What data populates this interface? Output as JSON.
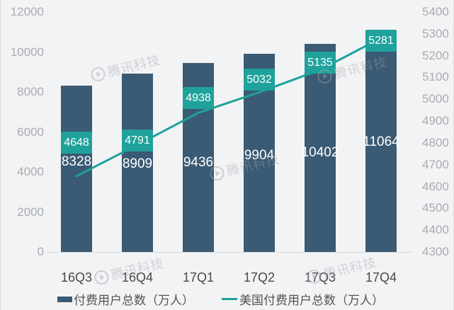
{
  "chart_data": {
    "type": "bar+line",
    "title": "",
    "categories": [
      "16Q3",
      "16Q4",
      "17Q1",
      "17Q2",
      "17Q3",
      "17Q4"
    ],
    "series": [
      {
        "name": "付费用户总数（万人）",
        "type": "bar",
        "axis": "left",
        "values": [
          8328,
          8909,
          9436,
          9904,
          10402,
          11064
        ],
        "color": "#3b5a74",
        "data_labels": [
          "8328",
          "8909",
          "9436",
          "9904",
          "10402",
          "11064"
        ]
      },
      {
        "name": "美国付费用户总数（万人）",
        "type": "line",
        "axis": "right",
        "values": [
          4648,
          4791,
          4938,
          5032,
          5135,
          5281
        ],
        "color": "#1fa29b",
        "data_labels": [
          "4648",
          "4791",
          "4938",
          "5032",
          "5135",
          "5281"
        ]
      }
    ],
    "left_axis": {
      "min": 0,
      "max": 12000,
      "step": 2000,
      "ticks": [
        0,
        2000,
        4000,
        6000,
        8000,
        10000,
        12000
      ]
    },
    "right_axis": {
      "min": 4300,
      "max": 5400,
      "step": 100,
      "ticks": [
        4300,
        4400,
        4500,
        4600,
        4700,
        4800,
        4900,
        5000,
        5100,
        5200,
        5300,
        5400
      ]
    },
    "grid": false,
    "legend_position": "bottom"
  },
  "legend": {
    "items": [
      {
        "label": "付费用户总数（万人）",
        "swatch": "bar"
      },
      {
        "label": "美国付费用户总数（万人）",
        "swatch": "line"
      }
    ]
  },
  "watermark": {
    "text": "腾讯科技"
  },
  "colors": {
    "bar": "#3b5a74",
    "teal": "#1fa29b",
    "background": "#f2f3f4",
    "axis_text": "#a9acb0",
    "x_label_text": "#47484a",
    "legend_text": "#515356",
    "axis_line": "#d7d8da",
    "label_text": "#ffffff"
  }
}
